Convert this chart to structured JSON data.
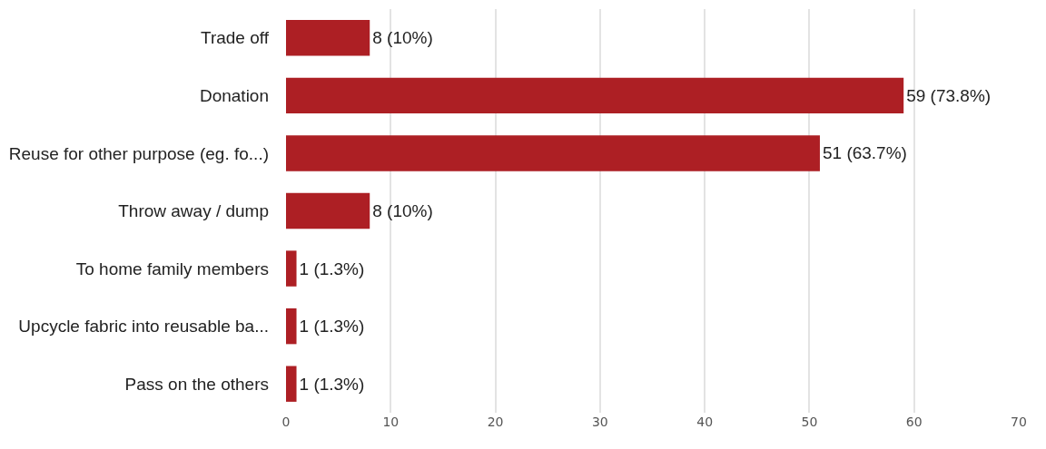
{
  "chart_data": {
    "type": "bar",
    "orientation": "horizontal",
    "categories": [
      "Trade off",
      "Donation",
      "Reuse for other purpose (eg. fo...)",
      "Throw away / dump",
      "To home family members",
      "Upcycle fabric into reusable ba...",
      "Pass on the others"
    ],
    "values": [
      8,
      59,
      51,
      8,
      1,
      1,
      1
    ],
    "value_labels": [
      "8 (10%)",
      "59 (73.8%)",
      "51 (63.7%)",
      "8 (10%)",
      "1 (1.3%)",
      "1 (1.3%)",
      "1 (1.3%)"
    ],
    "color": "#ad1f24",
    "xlim": [
      0,
      70
    ],
    "xticks": [
      0,
      10,
      20,
      30,
      40,
      50,
      60,
      70
    ],
    "grid": "x",
    "legend": false
  }
}
